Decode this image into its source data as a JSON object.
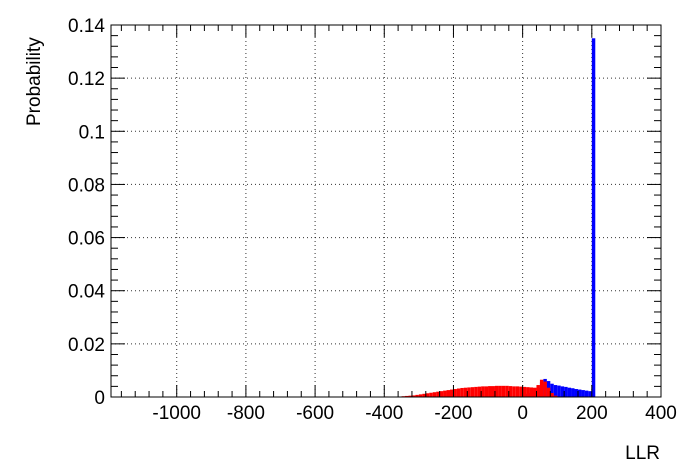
{
  "chart_data": {
    "type": "bar",
    "title": "",
    "xlabel": "LLR",
    "ylabel": "Probability",
    "xlim": [
      -1190,
      400
    ],
    "ylim": [
      0,
      0.14
    ],
    "grid": true,
    "x_ticks": [
      -1000,
      -800,
      -600,
      -400,
      -200,
      0,
      200,
      400
    ],
    "x_tick_labels": [
      "-1000",
      "-800",
      "-600",
      "-400",
      "-200",
      "0",
      "200",
      "400"
    ],
    "y_ticks": [
      0,
      0.02,
      0.04,
      0.06,
      0.08,
      0.1,
      0.12,
      0.14
    ],
    "y_tick_labels": [
      "0",
      "0.02",
      "0.04",
      "0.06",
      "0.08",
      "0.1",
      "0.12",
      "0.14"
    ],
    "series": [
      {
        "color": "#0000ff",
        "bin_width": 10,
        "x": [
          0,
          10,
          20,
          30,
          40,
          50,
          60,
          70,
          80,
          90,
          100,
          110,
          120,
          130,
          140,
          150,
          160,
          170,
          180,
          190,
          200
        ],
        "values": [
          0.001,
          0.0012,
          0.0015,
          0.002,
          0.0035,
          0.0055,
          0.0068,
          0.006,
          0.005,
          0.0045,
          0.0043,
          0.004,
          0.0038,
          0.0035,
          0.0033,
          0.003,
          0.0028,
          0.0026,
          0.0024,
          0.0022,
          0.135
        ]
      },
      {
        "color": "#ff0000",
        "bin_width": 10,
        "x": [
          -1180,
          -1000,
          -800,
          -600,
          -400,
          -350,
          -340,
          -330,
          -320,
          -310,
          -300,
          -290,
          -280,
          -270,
          -260,
          -250,
          -240,
          -230,
          -220,
          -210,
          -200,
          -190,
          -180,
          -170,
          -160,
          -150,
          -140,
          -130,
          -120,
          -110,
          -100,
          -90,
          -80,
          -70,
          -60,
          -50,
          -40,
          -30,
          -20,
          -10,
          0,
          10,
          20,
          30,
          40,
          50,
          60,
          70,
          80,
          90,
          100
        ],
        "values": [
          0.0001,
          0.0001,
          0.0001,
          0.0001,
          0.0002,
          0.0003,
          0.0004,
          0.0005,
          0.0006,
          0.0008,
          0.001,
          0.0012,
          0.0014,
          0.0016,
          0.0018,
          0.002,
          0.0022,
          0.0024,
          0.0026,
          0.0028,
          0.003,
          0.0032,
          0.0034,
          0.0035,
          0.0036,
          0.0037,
          0.0038,
          0.0039,
          0.004,
          0.004,
          0.0041,
          0.0041,
          0.0042,
          0.0042,
          0.0042,
          0.0042,
          0.0041,
          0.004,
          0.004,
          0.0039,
          0.0038,
          0.0037,
          0.0036,
          0.0035,
          0.0045,
          0.0065,
          0.0058,
          0.0035,
          0.0015,
          0.0005,
          0.0001
        ]
      }
    ]
  }
}
